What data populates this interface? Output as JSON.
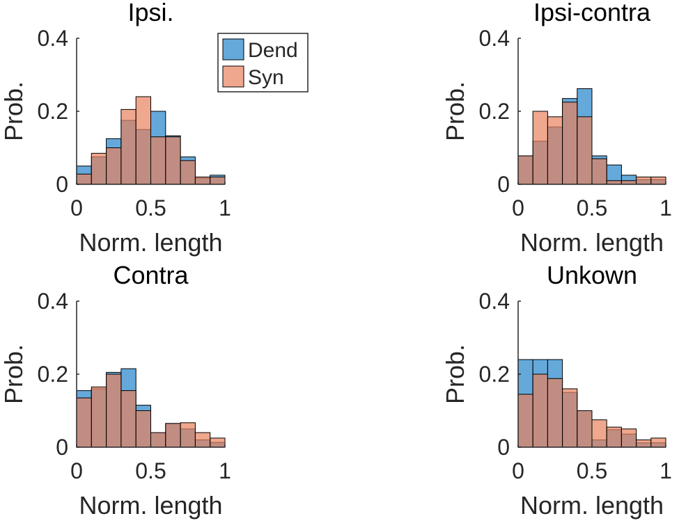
{
  "colors": {
    "dend": "#4a9ad4",
    "syn": "#e8825c",
    "edge": "#000000",
    "text": "#262626"
  },
  "legend": {
    "placement": "inside-top-right of first panel",
    "entries": [
      "Dend",
      "Syn"
    ]
  },
  "chart_data": [
    {
      "type": "bar",
      "subtype": "overlaid-histogram",
      "title": "Ipsi.",
      "xlabel": "Norm. length",
      "ylabel": "Prob.",
      "xlim": [
        0,
        1
      ],
      "ylim": [
        0,
        0.4
      ],
      "xticks": [
        "0",
        "0.5",
        "1"
      ],
      "yticks": [
        "0",
        "0.2",
        "0.4"
      ],
      "bin_edges": [
        0,
        0.1,
        0.2,
        0.3,
        0.4,
        0.5,
        0.6,
        0.7,
        0.8,
        0.9,
        1.0
      ],
      "series": [
        {
          "name": "Dend",
          "values": [
            0.05,
            0.075,
            0.125,
            0.175,
            0.15,
            0.2,
            0.133,
            0.075,
            0.017,
            0.025
          ]
        },
        {
          "name": "Syn",
          "values": [
            0.028,
            0.085,
            0.1,
            0.205,
            0.24,
            0.13,
            0.13,
            0.065,
            0.02,
            0.02
          ]
        }
      ]
    },
    {
      "type": "bar",
      "subtype": "overlaid-histogram",
      "title": "Ipsi-contra",
      "xlabel": "Norm. length",
      "ylabel": "Prob.",
      "xlim": [
        0,
        1
      ],
      "ylim": [
        0,
        0.4
      ],
      "xticks": [
        "0",
        "0.5",
        "1"
      ],
      "yticks": [
        "0",
        "0.2",
        "0.4"
      ],
      "bin_edges": [
        0,
        0.1,
        0.2,
        0.3,
        0.4,
        0.5,
        0.6,
        0.7,
        0.8,
        0.9,
        1.0
      ],
      "series": [
        {
          "name": "Dend",
          "values": [
            0.078,
            0.118,
            0.157,
            0.235,
            0.262,
            0.078,
            0.053,
            0.025,
            0.013,
            0.013
          ]
        },
        {
          "name": "Syn",
          "values": [
            0.078,
            0.2,
            0.185,
            0.225,
            0.185,
            0.07,
            0.01,
            0.01,
            0.02,
            0.02
          ]
        }
      ]
    },
    {
      "type": "bar",
      "subtype": "overlaid-histogram",
      "title": "Contra",
      "xlabel": "Norm. length",
      "ylabel": "Prob.",
      "xlim": [
        0,
        1
      ],
      "ylim": [
        0,
        0.4
      ],
      "xticks": [
        "0",
        "0.5",
        "1"
      ],
      "yticks": [
        "0",
        "0.2",
        "0.4"
      ],
      "bin_edges": [
        0,
        0.1,
        0.2,
        0.3,
        0.4,
        0.5,
        0.6,
        0.7,
        0.8,
        0.9,
        1.0
      ],
      "series": [
        {
          "name": "Dend",
          "values": [
            0.155,
            0.16,
            0.205,
            0.215,
            0.115,
            0.04,
            0.065,
            0.05,
            0.02,
            0.013
          ]
        },
        {
          "name": "Syn",
          "values": [
            0.135,
            0.165,
            0.2,
            0.155,
            0.1,
            0.04,
            0.065,
            0.067,
            0.04,
            0.025
          ]
        }
      ]
    },
    {
      "type": "bar",
      "subtype": "overlaid-histogram",
      "title": "Unkown",
      "xlabel": "Norm. length",
      "ylabel": "Prob.",
      "xlim": [
        0,
        1
      ],
      "ylim": [
        0,
        0.4
      ],
      "xticks": [
        "0",
        "0.5",
        "1"
      ],
      "yticks": [
        "0",
        "0.2",
        "0.4"
      ],
      "bin_edges": [
        0,
        0.1,
        0.2,
        0.3,
        0.4,
        0.5,
        0.6,
        0.7,
        0.8,
        0.9,
        1.0
      ],
      "series": [
        {
          "name": "Dend",
          "values": [
            0.24,
            0.24,
            0.24,
            0.15,
            0.1,
            0.02,
            0.048,
            0.036,
            0.012,
            0.012
          ]
        },
        {
          "name": "Syn",
          "values": [
            0.145,
            0.2,
            0.188,
            0.16,
            0.1,
            0.075,
            0.055,
            0.05,
            0.02,
            0.025
          ]
        }
      ]
    }
  ]
}
